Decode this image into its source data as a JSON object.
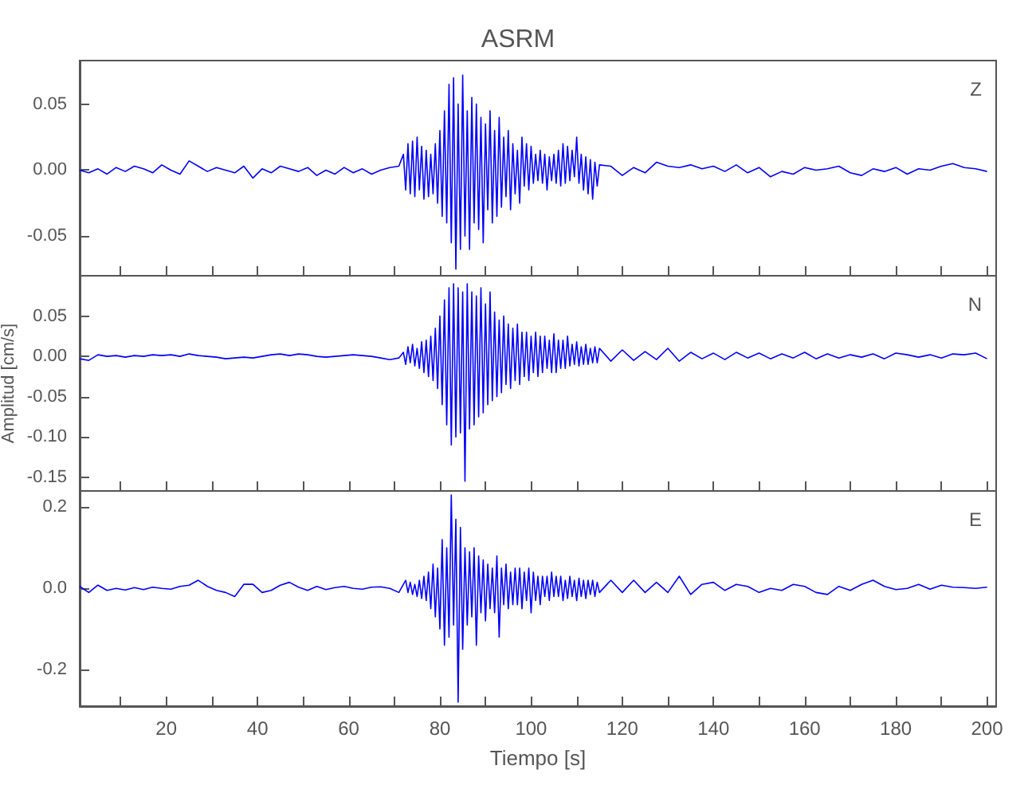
{
  "chart_data": [
    {
      "type": "line",
      "title": "ASRM",
      "annotations": [
        "Z"
      ],
      "color": "#0000ff",
      "marker": "none",
      "tick_labels": "y",
      "xlim": [
        1,
        202
      ],
      "ylim": [
        -0.08,
        0.083
      ],
      "xticks": [
        {
          "value": 10,
          "label": null
        },
        {
          "value": 20,
          "label": null
        },
        {
          "value": 30,
          "label": null
        },
        {
          "value": 40,
          "label": null
        },
        {
          "value": 50,
          "label": null
        },
        {
          "value": 60,
          "label": null
        },
        {
          "value": 70,
          "label": null
        },
        {
          "value": 80,
          "label": null
        },
        {
          "value": 90,
          "label": null
        },
        {
          "value": 100,
          "label": null
        },
        {
          "value": 110,
          "label": null
        },
        {
          "value": 120,
          "label": null
        },
        {
          "value": 130,
          "label": null
        },
        {
          "value": 140,
          "label": null
        },
        {
          "value": 150,
          "label": null
        },
        {
          "value": 160,
          "label": null
        },
        {
          "value": 170,
          "label": null
        },
        {
          "value": 180,
          "label": null
        },
        {
          "value": 190,
          "label": null
        },
        {
          "value": 200,
          "label": null
        }
      ],
      "yticks": [
        {
          "value": -0.05,
          "label": "-0.05"
        },
        {
          "value": 0,
          "label": "0.00"
        },
        {
          "value": 0.05,
          "label": "0.05"
        }
      ],
      "x": [
        1,
        3,
        5,
        7,
        9,
        11,
        13,
        15,
        17,
        19,
        21,
        23,
        25,
        27,
        29,
        31,
        33,
        35,
        37,
        39,
        41,
        43,
        45,
        47,
        49,
        51,
        53,
        55,
        57,
        59,
        61,
        63,
        65,
        67,
        69,
        71,
        72,
        72.5,
        73,
        73.5,
        74,
        74.5,
        75,
        75.5,
        76,
        76.5,
        77,
        77.5,
        78,
        78.5,
        79,
        79.5,
        80,
        80.5,
        81,
        81.5,
        82,
        82.5,
        83,
        83.5,
        84,
        84.5,
        85,
        85.5,
        86,
        86.5,
        87,
        87.5,
        88,
        88.5,
        89,
        89.5,
        90,
        90.5,
        91,
        91.5,
        92,
        92.5,
        93,
        93.5,
        94,
        94.5,
        95,
        95.5,
        96,
        96.5,
        97,
        97.5,
        98,
        98.5,
        99,
        99.5,
        100,
        100.5,
        101,
        101.5,
        102,
        102.5,
        103,
        103.5,
        104,
        104.5,
        105,
        105.5,
        106,
        106.5,
        107,
        107.5,
        108,
        108.5,
        109,
        109.5,
        110,
        110.5,
        111,
        111.5,
        112,
        112.5,
        113,
        113.5,
        114,
        114.5,
        115,
        117.5,
        120,
        122.5,
        125,
        127.5,
        130,
        132.5,
        135,
        137.5,
        140,
        142.5,
        145,
        147.5,
        150,
        152.5,
        155,
        157.5,
        160,
        162.5,
        165,
        167.5,
        170,
        172.5,
        175,
        177.5,
        180,
        182.5,
        185,
        187.5,
        190,
        192.5,
        195,
        197.5,
        200
      ],
      "values": [
        0,
        -0.002,
        0.001,
        -0.003,
        0.002,
        -0.001,
        0.003,
        0.001,
        -0.002,
        0.004,
        0,
        -0.003,
        0.007,
        0.003,
        -0.001,
        0.002,
        0,
        -0.002,
        0.003,
        -0.006,
        0.001,
        -0.002,
        0.003,
        0.001,
        -0.001,
        0.002,
        -0.004,
        0,
        -0.003,
        0.002,
        -0.002,
        0.001,
        -0.003,
        0,
        0.002,
        0.003,
        0.012,
        -0.015,
        0.02,
        -0.018,
        0.022,
        -0.02,
        0.025,
        -0.015,
        0.018,
        -0.022,
        0.015,
        -0.02,
        0.012,
        -0.018,
        0.02,
        -0.025,
        0.03,
        -0.035,
        0.045,
        -0.04,
        0.065,
        -0.055,
        0.07,
        -0.075,
        0.05,
        -0.06,
        0.072,
        -0.05,
        0.045,
        -0.06,
        0.055,
        -0.04,
        0.05,
        -0.045,
        0.04,
        -0.055,
        0.035,
        -0.03,
        0.045,
        -0.04,
        0.03,
        -0.035,
        0.04,
        -0.028,
        0.025,
        -0.02,
        0.03,
        -0.03,
        0.02,
        -0.018,
        0.015,
        -0.025,
        0.025,
        -0.012,
        0.02,
        -0.015,
        0.018,
        -0.01,
        0.012,
        -0.008,
        0.015,
        -0.01,
        0.012,
        -0.015,
        0.01,
        -0.008,
        0.012,
        -0.01,
        0.015,
        -0.012,
        0.02,
        -0.01,
        0.018,
        -0.008,
        0.015,
        -0.005,
        0.025,
        -0.01,
        0.012,
        -0.015,
        0.01,
        -0.018,
        0.008,
        -0.022,
        0.006,
        -0.012,
        0.004,
        0.003,
        -0.004,
        0.002,
        -0.002,
        0.006,
        0.003,
        0.002,
        0.004,
        0.001,
        0.003,
        -0.001,
        0.004,
        -0.002,
        0.002,
        -0.005,
        -0.001,
        -0.003,
        0.002,
        0,
        0.001,
        0.003,
        -0.002,
        -0.004,
        0.001,
        -0.001,
        0.002,
        -0.003,
        0.001,
        0,
        0.003,
        0.005,
        0.002,
        0.001,
        -0.001
      ]
    },
    {
      "type": "line",
      "ylabel": "Amplitud [cm/s]",
      "annotations": [
        "N"
      ],
      "color": "#0000ff",
      "marker": "none",
      "tick_labels": "y",
      "xlim": [
        1,
        202
      ],
      "ylim": [
        -0.167,
        0.1
      ],
      "xticks": [
        {
          "value": 10,
          "label": null
        },
        {
          "value": 20,
          "label": null
        },
        {
          "value": 30,
          "label": null
        },
        {
          "value": 40,
          "label": null
        },
        {
          "value": 50,
          "label": null
        },
        {
          "value": 60,
          "label": null
        },
        {
          "value": 70,
          "label": null
        },
        {
          "value": 80,
          "label": null
        },
        {
          "value": 90,
          "label": null
        },
        {
          "value": 100,
          "label": null
        },
        {
          "value": 110,
          "label": null
        },
        {
          "value": 120,
          "label": null
        },
        {
          "value": 130,
          "label": null
        },
        {
          "value": 140,
          "label": null
        },
        {
          "value": 150,
          "label": null
        },
        {
          "value": 160,
          "label": null
        },
        {
          "value": 170,
          "label": null
        },
        {
          "value": 180,
          "label": null
        },
        {
          "value": 190,
          "label": null
        },
        {
          "value": 200,
          "label": null
        }
      ],
      "yticks": [
        {
          "value": -0.15,
          "label": "-0.15"
        },
        {
          "value": -0.1,
          "label": "-0.10"
        },
        {
          "value": -0.05,
          "label": "-0.05"
        },
        {
          "value": 0,
          "label": "0.00"
        },
        {
          "value": 0.05,
          "label": "0.05"
        }
      ],
      "x": [
        1,
        3,
        5,
        7,
        9,
        11,
        13,
        15,
        17,
        19,
        21,
        23,
        25,
        27,
        29,
        31,
        33,
        35,
        37,
        39,
        41,
        43,
        45,
        47,
        49,
        51,
        53,
        55,
        57,
        59,
        61,
        63,
        65,
        67,
        69,
        71,
        72,
        72.5,
        73,
        73.5,
        74,
        74.5,
        75,
        75.5,
        76,
        76.5,
        77,
        77.5,
        78,
        78.5,
        79,
        79.5,
        80,
        80.5,
        81,
        81.5,
        82,
        82.5,
        83,
        83.5,
        84,
        84.5,
        85,
        85.5,
        86,
        86.5,
        87,
        87.5,
        88,
        88.5,
        89,
        89.5,
        90,
        90.5,
        91,
        91.5,
        92,
        92.5,
        93,
        93.5,
        94,
        94.5,
        95,
        95.5,
        96,
        96.5,
        97,
        97.5,
        98,
        98.5,
        99,
        99.5,
        100,
        100.5,
        101,
        101.5,
        102,
        102.5,
        103,
        103.5,
        104,
        104.5,
        105,
        105.5,
        106,
        106.5,
        107,
        107.5,
        108,
        108.5,
        109,
        109.5,
        110,
        110.5,
        111,
        111.5,
        112,
        112.5,
        113,
        113.5,
        114,
        114.5,
        115,
        117.5,
        120,
        122.5,
        125,
        127.5,
        130,
        132.5,
        135,
        137.5,
        140,
        142.5,
        145,
        147.5,
        150,
        152.5,
        155,
        157.5,
        160,
        162.5,
        165,
        167.5,
        170,
        172.5,
        175,
        177.5,
        180,
        182.5,
        185,
        187.5,
        190,
        192.5,
        195,
        197.5,
        200
      ],
      "values": [
        -0.003,
        -0.005,
        0.002,
        0,
        0.001,
        -0.001,
        0.001,
        0,
        0.002,
        0.001,
        0.002,
        0,
        0.003,
        0.001,
        0,
        -0.001,
        -0.003,
        -0.002,
        -0.001,
        -0.002,
        0,
        0.002,
        0.003,
        0.001,
        0.003,
        0.002,
        0,
        -0.001,
        0,
        0.001,
        0.002,
        0.001,
        0,
        -0.002,
        -0.004,
        -0.002,
        0.005,
        -0.01,
        0.012,
        -0.008,
        0.015,
        -0.012,
        0.01,
        -0.015,
        0.018,
        -0.02,
        0.02,
        -0.025,
        0.025,
        -0.03,
        0.035,
        -0.04,
        0.05,
        -0.06,
        0.07,
        -0.085,
        0.085,
        -0.11,
        0.09,
        -0.1,
        0.085,
        -0.095,
        0.08,
        -0.155,
        0.09,
        -0.09,
        0.08,
        -0.085,
        0.075,
        -0.075,
        0.085,
        -0.07,
        0.065,
        -0.06,
        0.08,
        -0.055,
        0.055,
        -0.05,
        0.045,
        -0.045,
        0.05,
        -0.035,
        0.04,
        -0.04,
        0.035,
        -0.03,
        0.04,
        -0.035,
        0.03,
        -0.025,
        0.03,
        -0.03,
        0.025,
        -0.02,
        0.03,
        -0.025,
        0.025,
        -0.02,
        0.025,
        -0.015,
        0.02,
        -0.02,
        0.028,
        -0.02,
        0.02,
        -0.015,
        0.02,
        -0.015,
        0.025,
        -0.012,
        0.015,
        -0.01,
        0.018,
        -0.012,
        0.012,
        -0.01,
        0.015,
        -0.01,
        0.01,
        -0.008,
        0.012,
        -0.008,
        0.01,
        -0.006,
        0.008,
        -0.005,
        0.006,
        -0.004,
        0.01,
        -0.006,
        0.005,
        -0.003,
        0.004,
        -0.004,
        0.005,
        -0.002,
        0.004,
        -0.003,
        0.003,
        -0.002,
        0.005,
        -0.003,
        0.003,
        -0.002,
        0.002,
        -0.001,
        0.003,
        -0.003,
        0.004,
        0.002,
        -0.001,
        0.002,
        -0.002,
        0.003,
        0.002,
        0.004,
        -0.003
      ]
    },
    {
      "type": "line",
      "xlabel": "Tiempo [s]",
      "annotations": [
        "E"
      ],
      "color": "#0000ff",
      "marker": "none",
      "xlim": [
        1,
        202
      ],
      "ylim": [
        -0.29,
        0.24
      ],
      "xticks": [
        {
          "value": 10,
          "label": null
        },
        20,
        {
          "value": 30,
          "label": null
        },
        40,
        {
          "value": 50,
          "label": null
        },
        60,
        {
          "value": 70,
          "label": null
        },
        80,
        {
          "value": 90,
          "label": null
        },
        100,
        {
          "value": 110,
          "label": null
        },
        120,
        {
          "value": 130,
          "label": null
        },
        140,
        {
          "value": 150,
          "label": null
        },
        160,
        {
          "value": 170,
          "label": null
        },
        180,
        {
          "value": 190,
          "label": null
        },
        200
      ],
      "yticks": [
        {
          "value": -0.2,
          "label": "-0.2"
        },
        {
          "value": 0,
          "label": "0.0"
        },
        {
          "value": 0.2,
          "label": "0.2"
        }
      ],
      "x": [
        1,
        3,
        5,
        7,
        9,
        11,
        13,
        15,
        17,
        19,
        21,
        23,
        25,
        27,
        29,
        31,
        33,
        35,
        37,
        39,
        41,
        43,
        45,
        47,
        49,
        51,
        53,
        55,
        57,
        59,
        61,
        63,
        65,
        67,
        69,
        71,
        72,
        72.5,
        73,
        73.5,
        74,
        74.5,
        75,
        75.5,
        76,
        76.5,
        77,
        77.5,
        78,
        78.5,
        79,
        79.5,
        80,
        80.5,
        81,
        81.5,
        82,
        82.5,
        83,
        83.5,
        84,
        84.5,
        85,
        85.5,
        86,
        86.5,
        87,
        87.5,
        88,
        88.5,
        89,
        89.5,
        90,
        90.5,
        91,
        91.5,
        92,
        92.5,
        93,
        93.5,
        94,
        94.5,
        95,
        95.5,
        96,
        96.5,
        97,
        97.5,
        98,
        98.5,
        99,
        99.5,
        100,
        100.5,
        101,
        101.5,
        102,
        102.5,
        103,
        103.5,
        104,
        104.5,
        105,
        105.5,
        106,
        106.5,
        107,
        107.5,
        108,
        108.5,
        109,
        109.5,
        110,
        110.5,
        111,
        111.5,
        112,
        112.5,
        113,
        113.5,
        114,
        114.5,
        115,
        117.5,
        120,
        122.5,
        125,
        127.5,
        130,
        132.5,
        135,
        137.5,
        140,
        142.5,
        145,
        147.5,
        150,
        152.5,
        155,
        157.5,
        160,
        162.5,
        165,
        167.5,
        170,
        172.5,
        175,
        177.5,
        180,
        182.5,
        185,
        187.5,
        190,
        192.5,
        195,
        197.5,
        200
      ],
      "values": [
        0.005,
        -0.01,
        0.008,
        -0.005,
        0,
        -0.004,
        0.002,
        -0.003,
        0.003,
        0,
        -0.002,
        0.005,
        0.008,
        0.02,
        0.005,
        -0.005,
        -0.01,
        -0.02,
        0.01,
        0.01,
        -0.01,
        -0.005,
        0.008,
        0.015,
        0.003,
        -0.005,
        0.005,
        -0.003,
        0.002,
        0.005,
        0,
        -0.002,
        0.003,
        0.004,
        0,
        -0.01,
        0.01,
        0.02,
        -0.01,
        0.015,
        -0.015,
        0.01,
        -0.02,
        0.02,
        -0.025,
        0.03,
        -0.03,
        0.04,
        -0.05,
        0.06,
        -0.07,
        0.05,
        -0.1,
        0.12,
        -0.14,
        0.1,
        -0.12,
        0.23,
        -0.09,
        0.17,
        -0.28,
        0.15,
        -0.15,
        0.1,
        -0.09,
        0.09,
        -0.07,
        0.1,
        -0.14,
        0.08,
        -0.06,
        0.07,
        -0.08,
        0.06,
        -0.05,
        0.05,
        -0.06,
        0.08,
        -0.12,
        0.05,
        -0.04,
        0.06,
        -0.05,
        0.04,
        -0.04,
        0.05,
        -0.04,
        0.05,
        -0.05,
        0.04,
        -0.03,
        0.05,
        -0.06,
        0.04,
        -0.03,
        0.03,
        -0.04,
        0.03,
        -0.02,
        0.03,
        -0.03,
        0.04,
        -0.02,
        0.03,
        -0.02,
        0.03,
        -0.03,
        0.02,
        -0.025,
        0.03,
        -0.02,
        0.02,
        -0.03,
        0.025,
        -0.02,
        0.02,
        -0.025,
        0.02,
        -0.015,
        0.02,
        -0.02,
        0.015,
        -0.01,
        0.02,
        -0.01,
        0.02,
        -0.01,
        0.015,
        -0.01,
        0.03,
        -0.015,
        0.01,
        0.015,
        -0.005,
        0.01,
        0.005,
        -0.01,
        0,
        -0.005,
        0.01,
        0.005,
        -0.01,
        -0.015,
        0.005,
        -0.005,
        0.01,
        0.02,
        0.005,
        -0.003,
        0,
        0.01,
        -0.002,
        0.008,
        0.003,
        0.002,
        0,
        0.003
      ]
    }
  ]
}
